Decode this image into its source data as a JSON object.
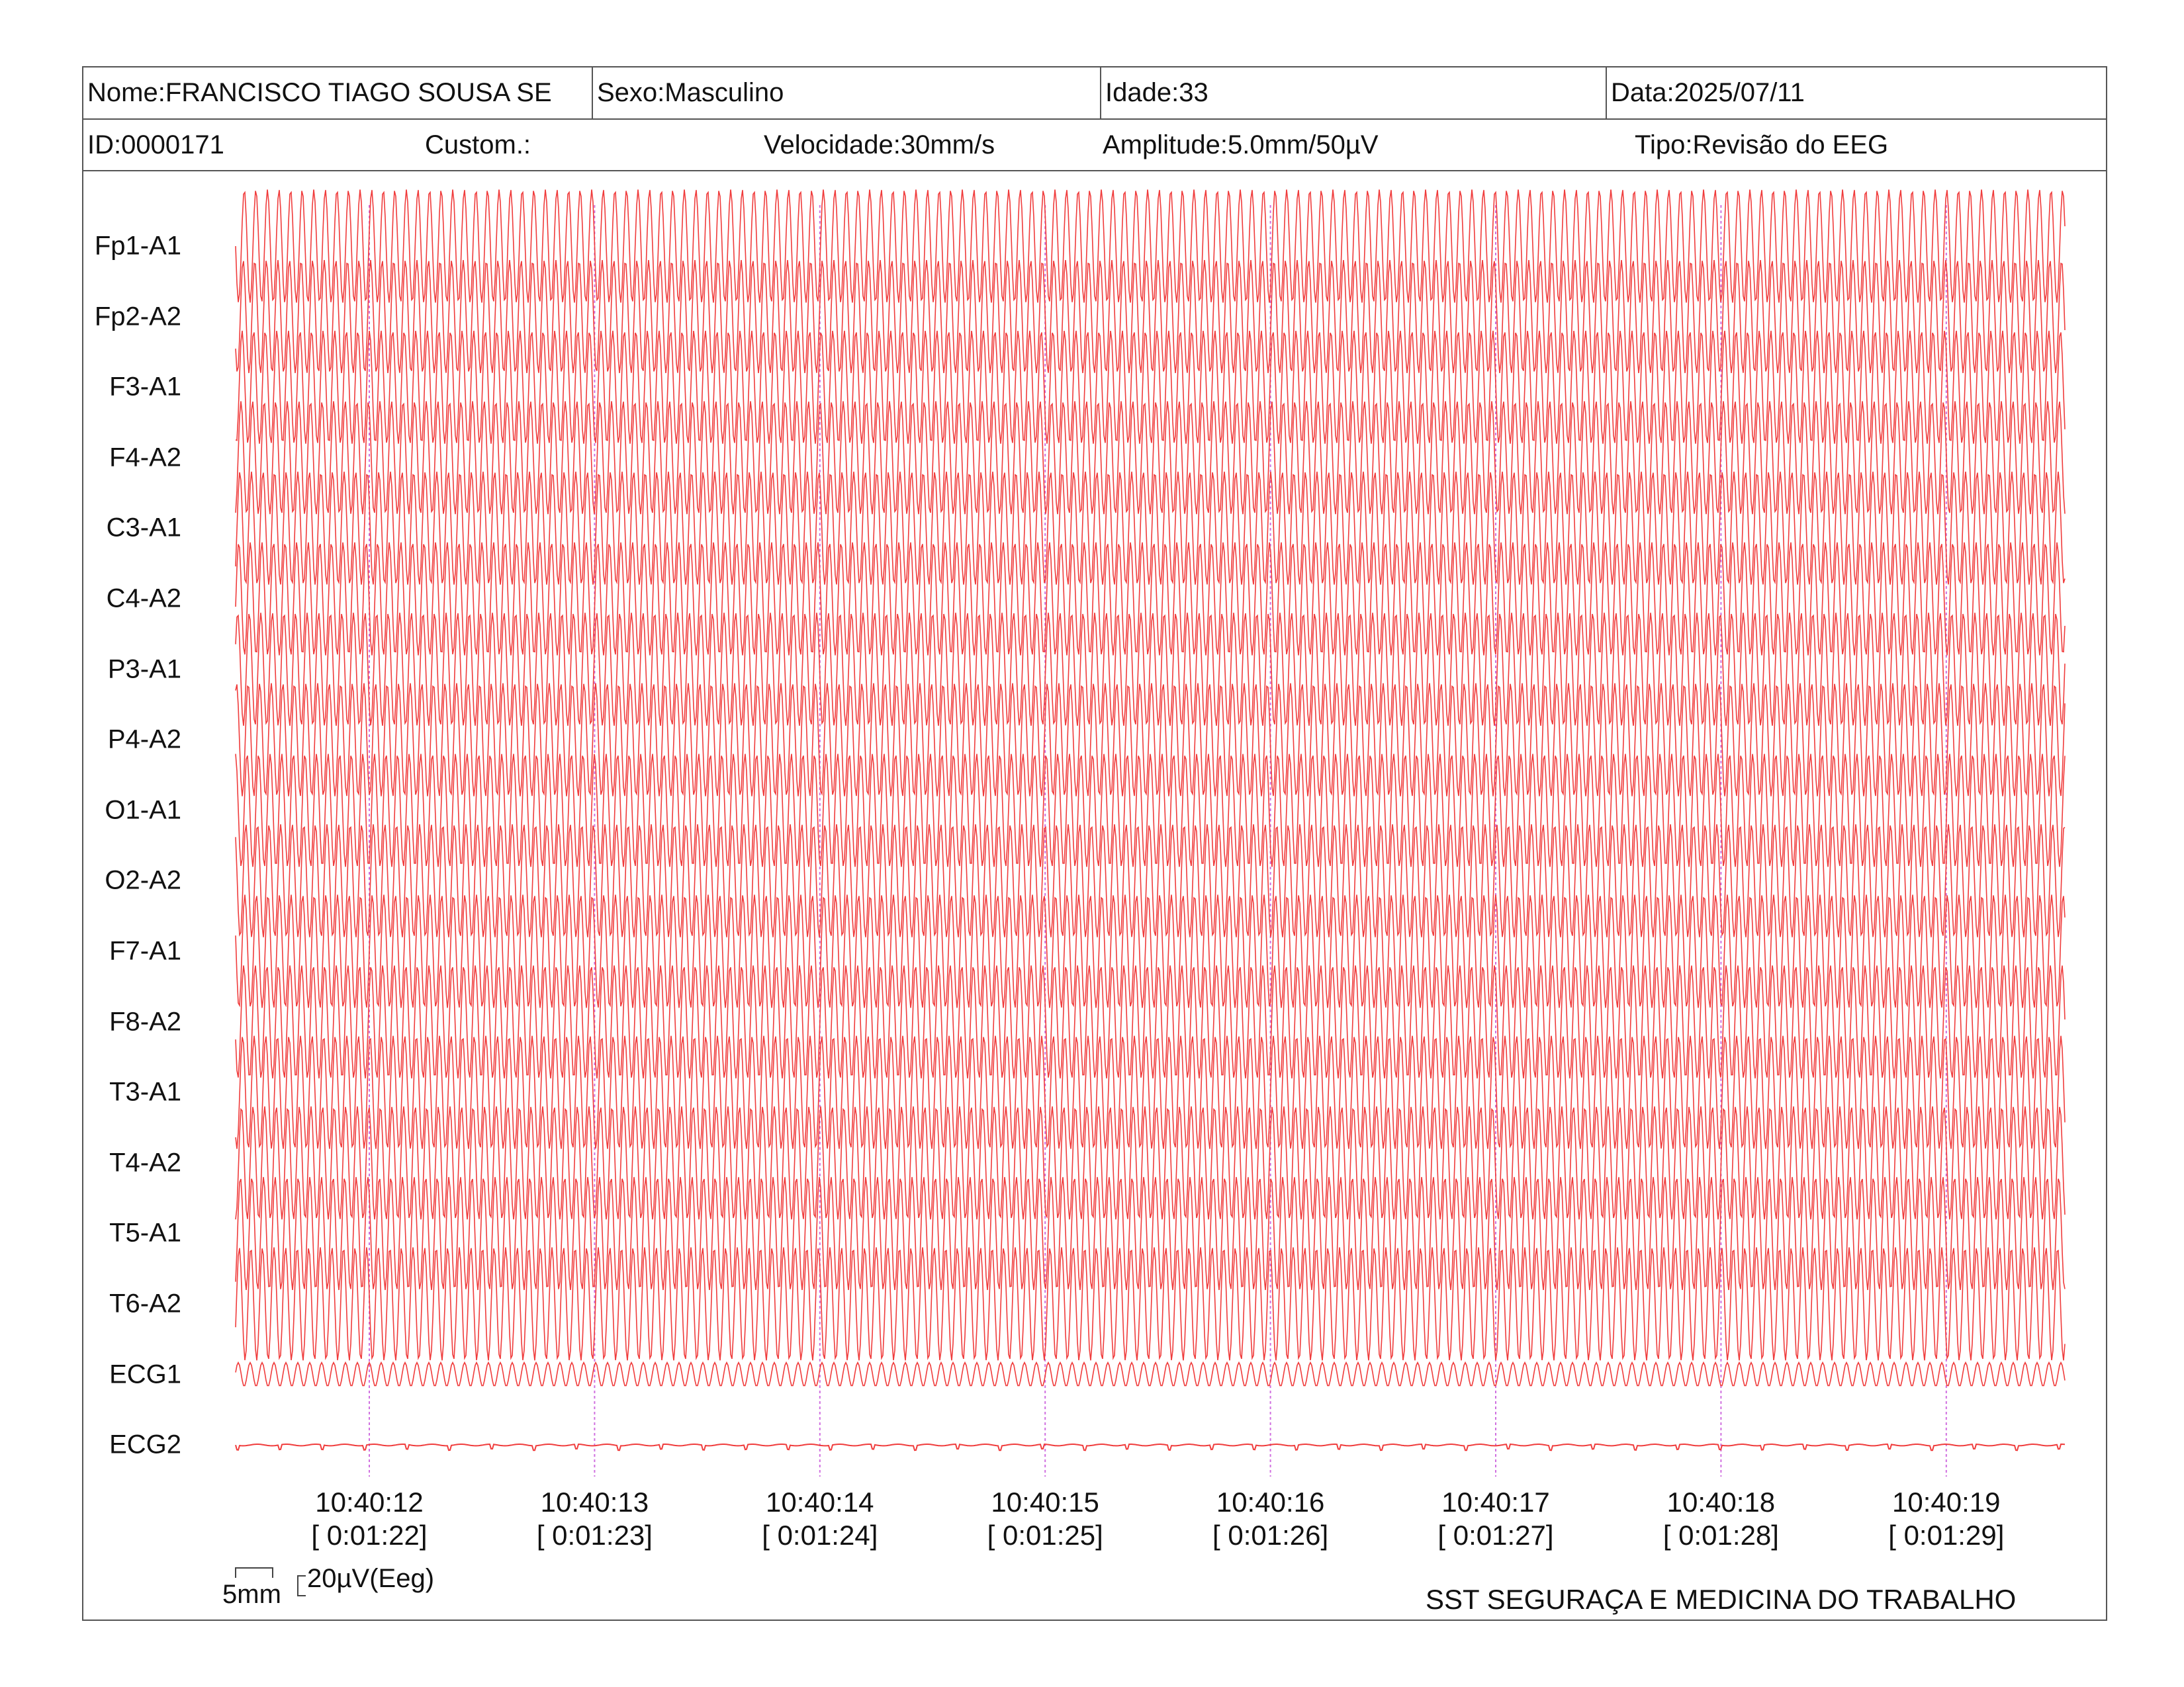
{
  "header": {
    "nome": "Nome:FRANCISCO TIAGO SOUSA SE",
    "sexo": "Sexo:Masculino",
    "idade": "Idade:33",
    "data": "Data:2025/07/11",
    "id": "ID:0000171",
    "custom": "Custom.:",
    "velocidade": "Velocidade:30mm/s",
    "amplitude": "Amplitude:5.0mm/50µV",
    "tipo": "Tipo:Revisão do EEG"
  },
  "channels": [
    {
      "label": "Fp1-A1",
      "amp": 0.95
    },
    {
      "label": "Fp2-A2",
      "amp": 0.95
    },
    {
      "label": "F3-A1",
      "amp": 0.95
    },
    {
      "label": "F4-A2",
      "amp": 0.95
    },
    {
      "label": "C3-A1",
      "amp": 0.95
    },
    {
      "label": "C4-A2",
      "amp": 0.95
    },
    {
      "label": "P3-A1",
      "amp": 0.95
    },
    {
      "label": "P4-A2",
      "amp": 0.95
    },
    {
      "label": "O1-A1",
      "amp": 0.95
    },
    {
      "label": "O2-A2",
      "amp": 0.95
    },
    {
      "label": "F7-A1",
      "amp": 0.95
    },
    {
      "label": "F8-A2",
      "amp": 0.95
    },
    {
      "label": "T3-A1",
      "amp": 0.95
    },
    {
      "label": "T4-A2",
      "amp": 0.95
    },
    {
      "label": "T5-A1",
      "amp": 0.95
    },
    {
      "label": "T6-A2",
      "amp": 0.95
    },
    {
      "label": "ECG1",
      "amp": 0.2
    },
    {
      "label": "ECG2",
      "amp": 0.04
    }
  ],
  "time_marks": [
    {
      "clock": "10:40:12",
      "elapsed": "[ 0:01:22]"
    },
    {
      "clock": "10:40:13",
      "elapsed": "[ 0:01:23]"
    },
    {
      "clock": "10:40:14",
      "elapsed": "[ 0:01:24]"
    },
    {
      "clock": "10:40:15",
      "elapsed": "[ 0:01:25]"
    },
    {
      "clock": "10:40:16",
      "elapsed": "[ 0:01:26]"
    },
    {
      "clock": "10:40:17",
      "elapsed": "[ 0:01:27]"
    },
    {
      "clock": "10:40:18",
      "elapsed": "[ 0:01:28]"
    },
    {
      "clock": "10:40:19",
      "elapsed": "[ 0:01:29]"
    }
  ],
  "scale": {
    "time_label": "5mm",
    "amp_label": "20µV(Eeg)"
  },
  "footer": {
    "company": "SST SEGURAÇA E MEDICINA DO TRABALHO"
  },
  "colors": {
    "trace": "#f03c3c",
    "marker": "#d070e0",
    "border": "#555555"
  }
}
